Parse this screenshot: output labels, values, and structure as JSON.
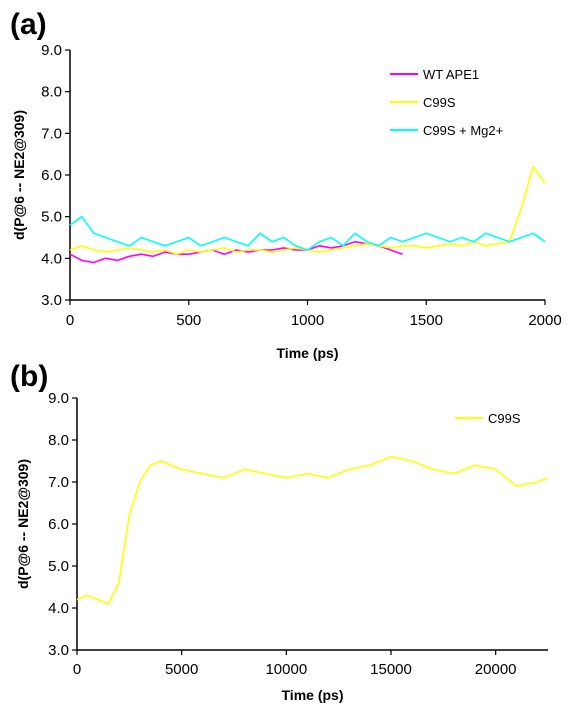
{
  "chart_data": [
    {
      "type": "line",
      "panel_label": "(a)",
      "xlabel": "Time (ps)",
      "ylabel": "d(P@6 -- NE2@309)",
      "xlim": [
        0,
        2000
      ],
      "ylim": [
        3.0,
        9.0
      ],
      "x_ticks": [
        "0",
        "500",
        "1000",
        "1500",
        "2000"
      ],
      "y_ticks": [
        "3.0",
        "4.0",
        "5.0",
        "6.0",
        "7.0",
        "8.0",
        "9.0"
      ],
      "grid": false,
      "legend_position": "top-right",
      "series": [
        {
          "name": "WT APE1",
          "color": "#ff00ff",
          "x": [
            0,
            50,
            100,
            150,
            200,
            250,
            300,
            350,
            400,
            450,
            500,
            550,
            600,
            650,
            700,
            750,
            800,
            850,
            900,
            950,
            1000,
            1050,
            1100,
            1150,
            1200,
            1250,
            1300,
            1350,
            1400
          ],
          "values": [
            4.1,
            3.95,
            3.9,
            4.0,
            3.95,
            4.05,
            4.1,
            4.05,
            4.15,
            4.1,
            4.1,
            4.15,
            4.2,
            4.1,
            4.2,
            4.15,
            4.2,
            4.2,
            4.25,
            4.2,
            4.2,
            4.3,
            4.25,
            4.3,
            4.4,
            4.35,
            4.3,
            4.2,
            4.1
          ]
        },
        {
          "name": "C99S",
          "color": "#ffff00",
          "x": [
            0,
            50,
            100,
            150,
            200,
            250,
            300,
            350,
            400,
            450,
            500,
            550,
            600,
            650,
            700,
            750,
            800,
            850,
            900,
            950,
            1000,
            1050,
            1100,
            1150,
            1200,
            1250,
            1300,
            1350,
            1400,
            1450,
            1500,
            1550,
            1600,
            1650,
            1700,
            1750,
            1800,
            1850,
            1900,
            1950,
            2000
          ],
          "values": [
            4.2,
            4.3,
            4.2,
            4.15,
            4.2,
            4.25,
            4.2,
            4.15,
            4.2,
            4.1,
            4.2,
            4.15,
            4.2,
            4.25,
            4.15,
            4.2,
            4.2,
            4.15,
            4.2,
            4.25,
            4.2,
            4.15,
            4.2,
            4.25,
            4.3,
            4.35,
            4.3,
            4.25,
            4.3,
            4.3,
            4.25,
            4.3,
            4.35,
            4.3,
            4.4,
            4.3,
            4.35,
            4.4,
            5.2,
            6.2,
            5.8
          ]
        },
        {
          "name": "C99S + Mg2+",
          "color": "#00ffff",
          "x": [
            0,
            50,
            100,
            150,
            200,
            250,
            300,
            350,
            400,
            450,
            500,
            550,
            600,
            650,
            700,
            750,
            800,
            850,
            900,
            950,
            1000,
            1050,
            1100,
            1150,
            1200,
            1250,
            1300,
            1350,
            1400,
            1450,
            1500,
            1550,
            1600,
            1650,
            1700,
            1750,
            1800,
            1850,
            1900,
            1950,
            2000
          ],
          "values": [
            4.8,
            5.0,
            4.6,
            4.5,
            4.4,
            4.3,
            4.5,
            4.4,
            4.3,
            4.4,
            4.5,
            4.3,
            4.4,
            4.5,
            4.4,
            4.3,
            4.6,
            4.4,
            4.5,
            4.3,
            4.2,
            4.4,
            4.5,
            4.3,
            4.6,
            4.4,
            4.3,
            4.5,
            4.4,
            4.5,
            4.6,
            4.5,
            4.4,
            4.5,
            4.4,
            4.6,
            4.5,
            4.4,
            4.5,
            4.6,
            4.4
          ]
        }
      ]
    },
    {
      "type": "line",
      "panel_label": "(b)",
      "xlabel": "Time (ps)",
      "ylabel": "d(P@6 -- NE2@309)",
      "xlim": [
        0,
        22500
      ],
      "ylim": [
        3.0,
        9.0
      ],
      "x_ticks": [
        "0",
        "5000",
        "10000",
        "15000",
        "20000"
      ],
      "y_ticks": [
        "3.0",
        "4.0",
        "5.0",
        "6.0",
        "7.0",
        "8.0",
        "9.0"
      ],
      "grid": false,
      "legend_position": "top-right",
      "series": [
        {
          "name": "C99S",
          "color": "#ffff00",
          "x": [
            0,
            500,
            1000,
            1500,
            2000,
            2500,
            3000,
            3500,
            4000,
            5000,
            6000,
            7000,
            8000,
            9000,
            10000,
            11000,
            12000,
            13000,
            14000,
            15000,
            16000,
            17000,
            18000,
            19000,
            20000,
            21000,
            22000,
            22500
          ],
          "values": [
            4.2,
            4.3,
            4.2,
            4.1,
            4.6,
            6.2,
            7.0,
            7.4,
            7.5,
            7.3,
            7.2,
            7.1,
            7.3,
            7.2,
            7.1,
            7.2,
            7.1,
            7.3,
            7.4,
            7.6,
            7.5,
            7.3,
            7.2,
            7.4,
            7.3,
            6.9,
            7.0,
            7.1
          ]
        }
      ]
    }
  ]
}
